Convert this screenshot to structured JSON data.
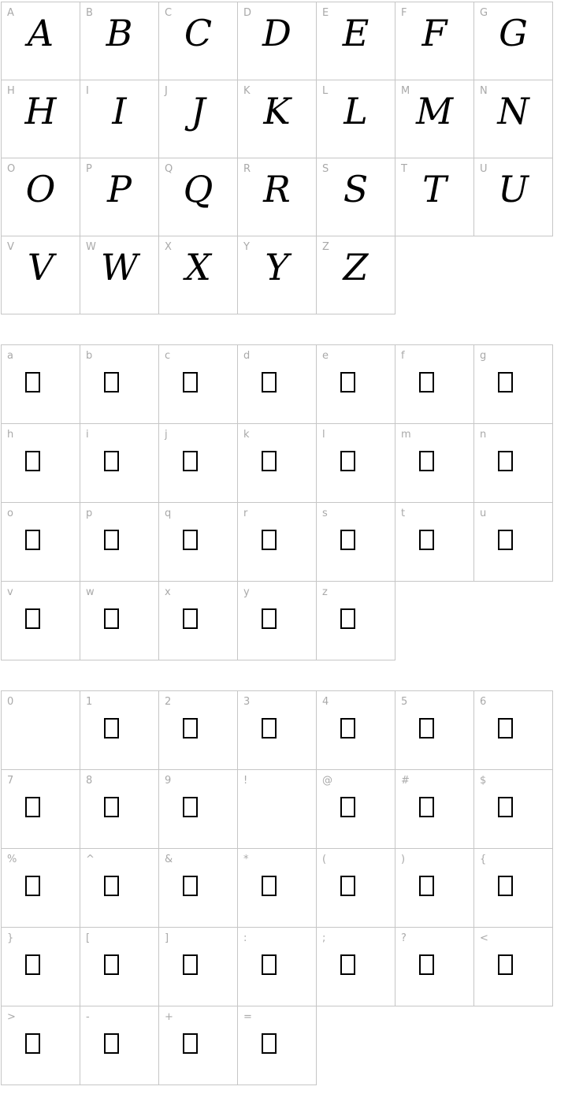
{
  "page": {
    "background_color": "#ffffff",
    "grid_border_color": "#c6c6c6",
    "cell_label_color": "#a9a9a9",
    "glyph_color": "#000000"
  },
  "grids": [
    {
      "name": "uppercase",
      "rows": [
        [
          {
            "label": "A",
            "glyph": "A",
            "type": "letter"
          },
          {
            "label": "B",
            "glyph": "B",
            "type": "letter"
          },
          {
            "label": "C",
            "glyph": "C",
            "type": "letter"
          },
          {
            "label": "D",
            "glyph": "D",
            "type": "letter"
          },
          {
            "label": "E",
            "glyph": "E",
            "type": "letter"
          },
          {
            "label": "F",
            "glyph": "F",
            "type": "letter"
          },
          {
            "label": "G",
            "glyph": "G",
            "type": "letter"
          }
        ],
        [
          {
            "label": "H",
            "glyph": "H",
            "type": "letter"
          },
          {
            "label": "I",
            "glyph": "I",
            "type": "letter"
          },
          {
            "label": "J",
            "glyph": "J",
            "type": "letter"
          },
          {
            "label": "K",
            "glyph": "K",
            "type": "letter"
          },
          {
            "label": "L",
            "glyph": "L",
            "type": "letter"
          },
          {
            "label": "M",
            "glyph": "M",
            "type": "letter"
          },
          {
            "label": "N",
            "glyph": "N",
            "type": "letter"
          }
        ],
        [
          {
            "label": "O",
            "glyph": "O",
            "type": "letter"
          },
          {
            "label": "P",
            "glyph": "P",
            "type": "letter"
          },
          {
            "label": "Q",
            "glyph": "Q",
            "type": "letter"
          },
          {
            "label": "R",
            "glyph": "R",
            "type": "letter"
          },
          {
            "label": "S",
            "glyph": "S",
            "type": "letter"
          },
          {
            "label": "T",
            "glyph": "T",
            "type": "letter"
          },
          {
            "label": "U",
            "glyph": "U",
            "type": "letter"
          }
        ],
        [
          {
            "label": "V",
            "glyph": "V",
            "type": "letter"
          },
          {
            "label": "W",
            "glyph": "W",
            "type": "letter"
          },
          {
            "label": "X",
            "glyph": "X",
            "type": "letter"
          },
          {
            "label": "Y",
            "glyph": "Y",
            "type": "letter"
          },
          {
            "label": "Z",
            "glyph": "Z",
            "type": "letter"
          }
        ]
      ]
    },
    {
      "name": "lowercase",
      "rows": [
        [
          {
            "label": "a",
            "type": "notdef"
          },
          {
            "label": "b",
            "type": "notdef"
          },
          {
            "label": "c",
            "type": "notdef"
          },
          {
            "label": "d",
            "type": "notdef"
          },
          {
            "label": "e",
            "type": "notdef"
          },
          {
            "label": "f",
            "type": "notdef"
          },
          {
            "label": "g",
            "type": "notdef"
          }
        ],
        [
          {
            "label": "h",
            "type": "notdef"
          },
          {
            "label": "i",
            "type": "notdef"
          },
          {
            "label": "j",
            "type": "notdef"
          },
          {
            "label": "k",
            "type": "notdef"
          },
          {
            "label": "l",
            "type": "notdef"
          },
          {
            "label": "m",
            "type": "notdef"
          },
          {
            "label": "n",
            "type": "notdef"
          }
        ],
        [
          {
            "label": "o",
            "type": "notdef"
          },
          {
            "label": "p",
            "type": "notdef"
          },
          {
            "label": "q",
            "type": "notdef"
          },
          {
            "label": "r",
            "type": "notdef"
          },
          {
            "label": "s",
            "type": "notdef"
          },
          {
            "label": "t",
            "type": "notdef"
          },
          {
            "label": "u",
            "type": "notdef"
          }
        ],
        [
          {
            "label": "v",
            "type": "notdef"
          },
          {
            "label": "w",
            "type": "notdef"
          },
          {
            "label": "x",
            "type": "notdef"
          },
          {
            "label": "y",
            "type": "notdef"
          },
          {
            "label": "z",
            "type": "notdef"
          }
        ]
      ]
    },
    {
      "name": "symbols",
      "rows": [
        [
          {
            "label": "0",
            "type": "empty"
          },
          {
            "label": "1",
            "type": "notdef"
          },
          {
            "label": "2",
            "type": "notdef"
          },
          {
            "label": "3",
            "type": "notdef"
          },
          {
            "label": "4",
            "type": "notdef"
          },
          {
            "label": "5",
            "type": "notdef"
          },
          {
            "label": "6",
            "type": "notdef"
          }
        ],
        [
          {
            "label": "7",
            "type": "notdef"
          },
          {
            "label": "8",
            "type": "notdef"
          },
          {
            "label": "9",
            "type": "notdef"
          },
          {
            "label": "!",
            "type": "empty"
          },
          {
            "label": "@",
            "type": "notdef"
          },
          {
            "label": "#",
            "type": "notdef"
          },
          {
            "label": "$",
            "type": "notdef"
          }
        ],
        [
          {
            "label": "%",
            "type": "notdef"
          },
          {
            "label": "^",
            "type": "notdef"
          },
          {
            "label": "&",
            "type": "notdef"
          },
          {
            "label": "*",
            "type": "notdef"
          },
          {
            "label": "(",
            "type": "notdef"
          },
          {
            "label": ")",
            "type": "notdef"
          },
          {
            "label": "{",
            "type": "notdef"
          }
        ],
        [
          {
            "label": "}",
            "type": "notdef"
          },
          {
            "label": "[",
            "type": "notdef"
          },
          {
            "label": "]",
            "type": "notdef"
          },
          {
            "label": ":",
            "type": "notdef"
          },
          {
            "label": ";",
            "type": "notdef"
          },
          {
            "label": "?",
            "type": "notdef"
          },
          {
            "label": "<",
            "type": "notdef"
          }
        ],
        [
          {
            "label": ">",
            "type": "notdef"
          },
          {
            "label": "-",
            "type": "notdef"
          },
          {
            "label": "+",
            "type": "notdef"
          },
          {
            "label": "=",
            "type": "notdef"
          }
        ]
      ]
    }
  ]
}
